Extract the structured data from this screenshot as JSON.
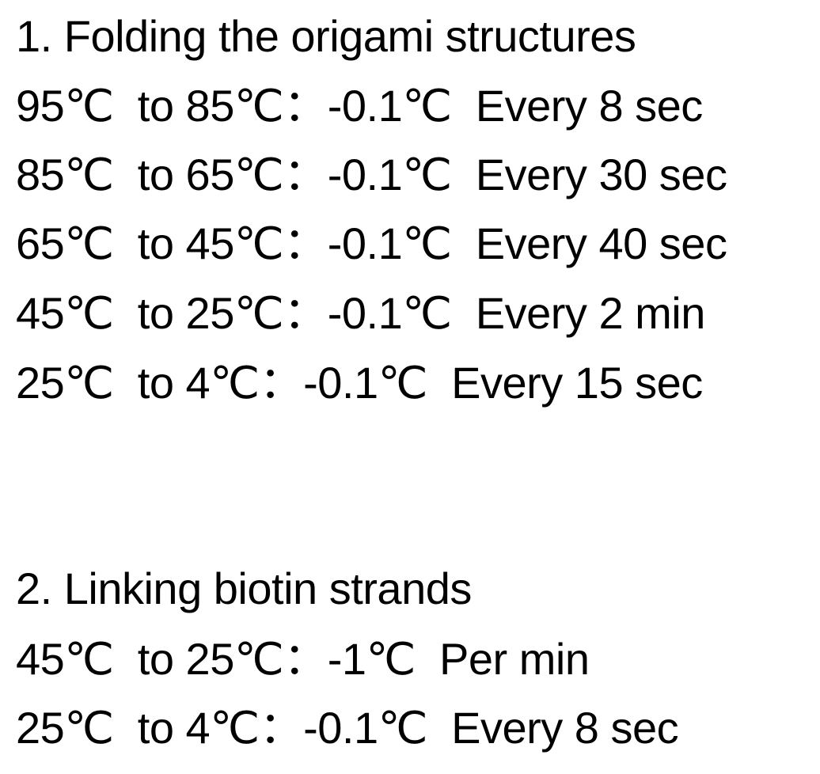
{
  "section1": {
    "heading": "1. Folding the origami structures",
    "steps": [
      "95℃  to 85℃：-0.1℃  Every 8 sec",
      "85℃  to 65℃：-0.1℃  Every 30 sec",
      "65℃  to 45℃：-0.1℃  Every 40 sec",
      "45℃  to 25℃：-0.1℃  Every 2 min",
      "25℃  to 4℃：-0.1℃  Every 15 sec"
    ]
  },
  "section2": {
    "heading": "2. Linking biotin strands",
    "steps": [
      "45℃  to 25℃：-1℃  Per min",
      "25℃  to 4℃：-0.1℃  Every 8 sec"
    ]
  }
}
